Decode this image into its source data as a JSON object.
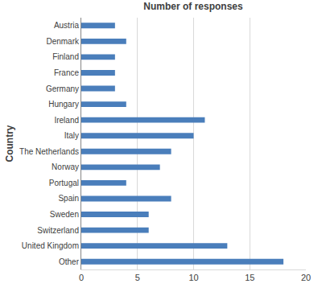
{
  "chart_data": {
    "type": "bar",
    "orientation": "horizontal",
    "title": "Number of responses",
    "y_label": "Country",
    "categories": [
      "Austria",
      "Denmark",
      "Finland",
      "France",
      "Germany",
      "Hungary",
      "Ireland",
      "Italy",
      "The Netherlands",
      "Norway",
      "Portugal",
      "Spain",
      "Sweden",
      "Switzerland",
      "United Kingdom",
      "Other"
    ],
    "values": [
      3,
      4,
      3,
      3,
      3,
      4,
      11,
      10,
      8,
      7,
      4,
      8,
      6,
      6,
      13,
      18
    ],
    "color": "#4a7ebb",
    "xlim": [
      0,
      20
    ],
    "xticks": [
      0,
      5,
      10,
      15,
      20
    ],
    "grid": true
  }
}
